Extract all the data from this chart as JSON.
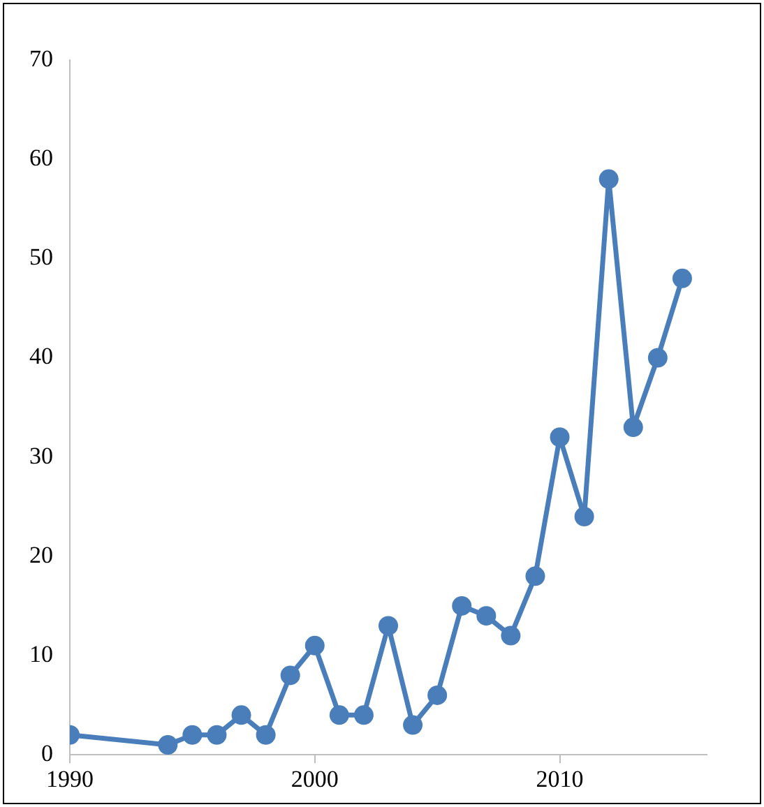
{
  "chart_data": {
    "type": "line",
    "x": [
      1990,
      1994,
      1995,
      1996,
      1997,
      1998,
      1999,
      2000,
      2001,
      2002,
      2003,
      2004,
      2005,
      2006,
      2007,
      2008,
      2009,
      2010,
      2011,
      2012,
      2013,
      2014,
      2015
    ],
    "series": [
      {
        "color": "#4a7ebb",
        "values": [
          2,
          1,
          2,
          2,
          4,
          2,
          8,
          11,
          4,
          4,
          13,
          3,
          6,
          15,
          14,
          12,
          18,
          32,
          24,
          58,
          33,
          40,
          48
        ]
      }
    ],
    "xlim": [
      1990,
      2016
    ],
    "xticks": [
      1990,
      2000,
      2010
    ],
    "ylim": [
      0,
      70
    ],
    "yticks": [
      0,
      10,
      20,
      30,
      40,
      50,
      60,
      70
    ],
    "grid": false,
    "legend": false,
    "marker": "circle",
    "line_style": "solid"
  }
}
